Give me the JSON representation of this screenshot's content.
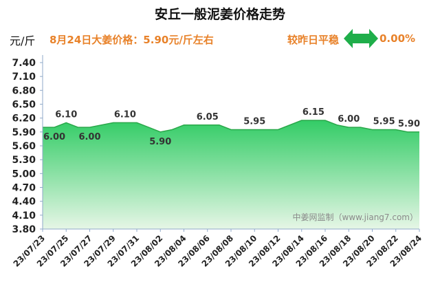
{
  "header": {
    "title": "安丘一般泥姜价格走势",
    "unit": "元/斤",
    "info": "8月24日大姜价格：5.90元/斤左右",
    "compare_label": "较昨日平稳",
    "compare_value": "0.00%",
    "compare_icon": "double-arrow-icon"
  },
  "watermark": "中姜网监制（www.jiang7.com）",
  "colors": {
    "area_top": "#33cc66",
    "area_bottom": "#e6f6e6",
    "line": "#2aa84a",
    "accent": "#e8822a",
    "arrow": "#1fae4a"
  },
  "chart_data": {
    "type": "area",
    "title": "安丘一般泥姜价格走势",
    "ylabel": "元/斤",
    "ylim": [
      3.8,
      7.4
    ],
    "y_ticks": [
      "7.40",
      "7.10",
      "6.80",
      "6.50",
      "6.20",
      "5.90",
      "5.60",
      "5.30",
      "5.00",
      "4.70",
      "4.40",
      "4.10",
      "3.80"
    ],
    "x": [
      "23/07/23",
      "23/07/24",
      "23/07/25",
      "23/07/26",
      "23/07/27",
      "23/07/28",
      "23/07/29",
      "23/07/30",
      "23/07/31",
      "23/08/01",
      "23/08/02",
      "23/08/03",
      "23/08/04",
      "23/08/05",
      "23/08/06",
      "23/08/07",
      "23/08/08",
      "23/08/09",
      "23/08/10",
      "23/08/11",
      "23/08/12",
      "23/08/13",
      "23/08/14",
      "23/08/15",
      "23/08/16",
      "23/08/17",
      "23/08/18",
      "23/08/19",
      "23/08/20",
      "23/08/21",
      "23/08/22",
      "23/08/23",
      "23/08/24"
    ],
    "x_tick_labels": [
      "23/07/23",
      "23/07/25",
      "23/07/27",
      "23/07/29",
      "23/07/31",
      "23/08/02",
      "23/08/04",
      "23/08/06",
      "23/08/08",
      "23/08/10",
      "23/08/12",
      "23/08/14",
      "23/08/16",
      "23/08/18",
      "23/08/20",
      "23/08/22",
      "23/08/24"
    ],
    "values": [
      6.0,
      6.0,
      6.1,
      6.0,
      6.0,
      6.05,
      6.1,
      6.1,
      6.1,
      6.0,
      5.9,
      5.95,
      6.05,
      6.05,
      6.05,
      6.05,
      5.95,
      5.95,
      5.95,
      5.95,
      5.95,
      6.05,
      6.15,
      6.15,
      6.15,
      6.05,
      6.0,
      6.0,
      5.95,
      5.95,
      5.95,
      5.9,
      5.9
    ],
    "data_labels": [
      {
        "x": "23/07/23",
        "text": "6.00"
      },
      {
        "x": "23/07/25",
        "text": "6.10"
      },
      {
        "x": "23/07/27",
        "text": "6.00"
      },
      {
        "x": "23/07/30",
        "text": "6.10"
      },
      {
        "x": "23/08/02",
        "text": "5.90"
      },
      {
        "x": "23/08/06",
        "text": "6.05"
      },
      {
        "x": "23/08/10",
        "text": "5.95"
      },
      {
        "x": "23/08/15",
        "text": "6.15"
      },
      {
        "x": "23/08/18",
        "text": "6.00"
      },
      {
        "x": "23/08/21",
        "text": "5.95"
      },
      {
        "x": "23/08/24",
        "text": "5.90"
      }
    ],
    "grid": false,
    "legend": "none"
  }
}
